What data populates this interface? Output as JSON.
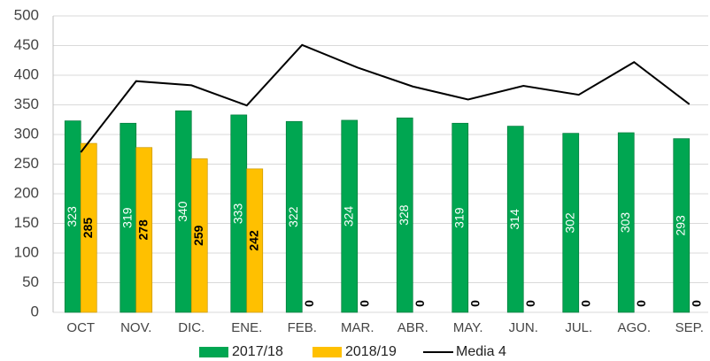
{
  "chart_data": {
    "type": "bar",
    "categories": [
      "OCT",
      "NOV.",
      "DIC.",
      "ENE.",
      "FEB.",
      "MAR.",
      "ABR.",
      "MAY.",
      "JUN.",
      "JUL.",
      "AGO.",
      "SEP."
    ],
    "series": [
      {
        "name": "2017/18",
        "color": "#00a651",
        "type": "bar",
        "values": [
          323,
          319,
          340,
          333,
          322,
          324,
          328,
          319,
          314,
          302,
          303,
          293
        ]
      },
      {
        "name": "2018/19",
        "color": "#ffc000",
        "type": "bar",
        "values": [
          285,
          278,
          259,
          242,
          0,
          0,
          0,
          0,
          0,
          0,
          0,
          0
        ]
      },
      {
        "name": "Media 4",
        "color": "#000000",
        "type": "line",
        "values": [
          270,
          390,
          383,
          349,
          451,
          413,
          381,
          359,
          382,
          367,
          422,
          351
        ]
      }
    ],
    "ylim": [
      0,
      500
    ],
    "yticks": [
      0,
      50,
      100,
      150,
      200,
      250,
      300,
      350,
      400,
      450,
      500
    ],
    "grid": true,
    "legend": "bottom"
  }
}
